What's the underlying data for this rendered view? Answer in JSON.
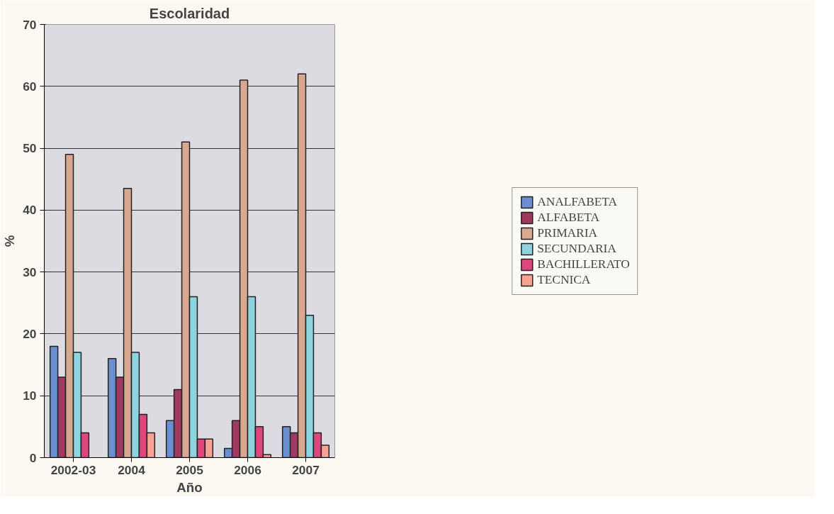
{
  "chart_data": {
    "type": "bar",
    "title": "Escolaridad",
    "xlabel": "Año",
    "ylabel": "%",
    "categories": [
      "2002-03",
      "2004",
      "2005",
      "2006",
      "2007"
    ],
    "series": [
      {
        "name": "ANALFABETA",
        "color": "#6a8fcf",
        "values": [
          18,
          16,
          6,
          1.5,
          5
        ]
      },
      {
        "name": "ALFABETA",
        "color": "#9e3a5e",
        "values": [
          13,
          13,
          11,
          6,
          4
        ]
      },
      {
        "name": "PRIMARIA",
        "color": "#d9a890",
        "values": [
          49,
          43.5,
          51,
          61,
          62
        ]
      },
      {
        "name": "SECUNDARIA",
        "color": "#8fd3de",
        "values": [
          17,
          17,
          26,
          26,
          23
        ]
      },
      {
        "name": "BACHILLERATO",
        "color": "#e0467e",
        "values": [
          4,
          7,
          3,
          5,
          4
        ]
      },
      {
        "name": "TECNICA",
        "color": "#f6a394",
        "values": [
          null,
          4,
          3,
          0.5,
          2
        ]
      }
    ],
    "ylim": [
      0,
      70
    ],
    "yticks": [
      0,
      10,
      20,
      30,
      40,
      50,
      60,
      70
    ],
    "grid": "y",
    "legend": "right"
  }
}
